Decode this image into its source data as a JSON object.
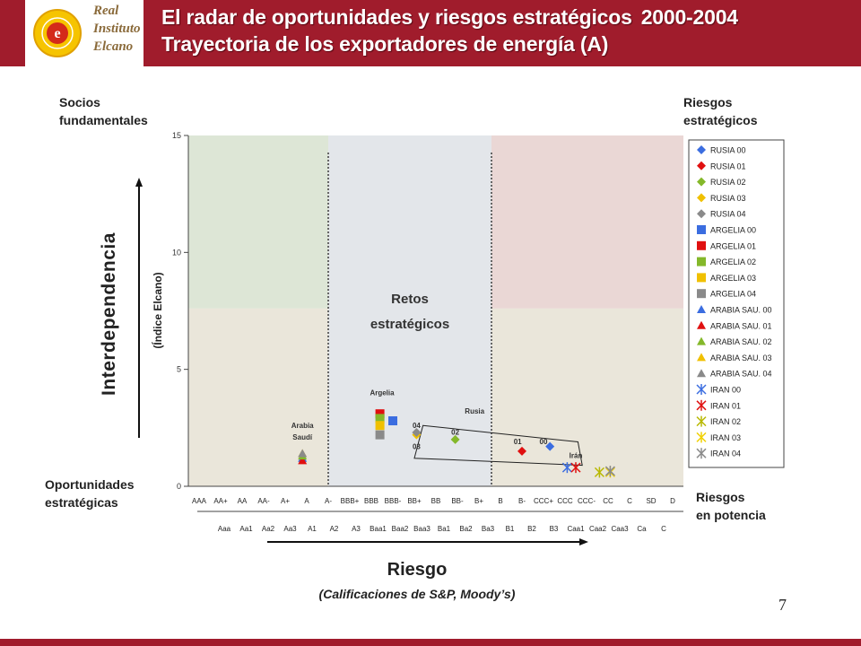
{
  "header": {
    "logo_text": [
      "Real",
      "Instituto",
      "Elcano"
    ],
    "title_line1": "El radar de oportunidades y riesgos estratégicos",
    "title_year": "2000-2004",
    "title_line2": "Trayectoria de los exportadores de energía (A)"
  },
  "corners": {
    "top_left": [
      "Socios",
      "fundamentales"
    ],
    "top_right": [
      "Riesgos",
      "estratégicos"
    ],
    "bottom_left": [
      "Oportunidades",
      "estratégicas"
    ],
    "bottom_right": [
      "Riesgos",
      "en potencia"
    ]
  },
  "page_number": "7",
  "colors": {
    "brand": "#a01c2c",
    "zone_green": "#dde6d6",
    "zone_grey": "#e3e6ea",
    "zone_pink": "#ead7d5",
    "zone_beige": "#eae6da"
  },
  "chart_data": {
    "type": "scatter",
    "ylabel": "Interdependencia",
    "ylabel_sub": "(Índice Elcano)",
    "xlabel": "Riesgo",
    "xlabel_sub": "(Calificaciones de S&P, Moody’s)",
    "ylim": [
      0,
      15
    ],
    "yticks": [
      0,
      5,
      10,
      15
    ],
    "grid": false,
    "legend_position": "right",
    "x_categories_sp": [
      "AAA",
      "AA+",
      "AA",
      "AA-",
      "A+",
      "A",
      "A-",
      "BBB+",
      "BBB",
      "BBB-",
      "BB+",
      "BB",
      "BB-",
      "B+",
      "B",
      "B-",
      "CCC+",
      "CCC",
      "CCC-",
      "CC",
      "C",
      "SD",
      "D"
    ],
    "x_categories_moodys": [
      "Aaa",
      "Aa1",
      "Aa2",
      "Aa3",
      "A1",
      "A2",
      "A3",
      "Baa1",
      "Baa2",
      "Baa3",
      "Ba1",
      "Ba2",
      "Ba3",
      "B1",
      "B2",
      "B3",
      "Caa1",
      "Caa2",
      "Caa3",
      "Ca",
      "C"
    ],
    "zone_text": [
      "Retos",
      "estratégicos"
    ],
    "annotations": [
      {
        "text": "Argelia",
        "x": 8.5,
        "y": 3.9
      },
      {
        "text": "Arabia",
        "x": 4.8,
        "y": 2.5
      },
      {
        "text": "Saudí",
        "x": 4.8,
        "y": 2.0
      },
      {
        "text": "Rusia",
        "x": 12.8,
        "y": 3.1
      },
      {
        "text": "Irán",
        "x": 17.5,
        "y": 1.2
      },
      {
        "text": "04",
        "x": 10.1,
        "y": 2.5
      },
      {
        "text": "03",
        "x": 10.1,
        "y": 1.6
      },
      {
        "text": "02",
        "x": 11.9,
        "y": 2.2
      },
      {
        "text": "01",
        "x": 14.8,
        "y": 1.8
      },
      {
        "text": "00",
        "x": 16.0,
        "y": 1.8
      }
    ],
    "series": [
      {
        "name": "RUSIA 00",
        "marker": "diamond",
        "color": "#3b6de0",
        "points": [
          [
            16.3,
            1.7
          ]
        ]
      },
      {
        "name": "RUSIA 01",
        "marker": "diamond",
        "color": "#e01010",
        "points": [
          [
            15.0,
            1.5
          ]
        ]
      },
      {
        "name": "RUSIA 02",
        "marker": "diamond",
        "color": "#84b82a",
        "points": [
          [
            11.9,
            2.0
          ]
        ]
      },
      {
        "name": "RUSIA 03",
        "marker": "diamond",
        "color": "#f0c000",
        "points": [
          [
            10.1,
            2.2
          ]
        ]
      },
      {
        "name": "RUSIA 04",
        "marker": "diamond",
        "color": "#8a8a8a",
        "points": [
          [
            10.1,
            2.3
          ]
        ]
      },
      {
        "name": "ARGELIA 00",
        "marker": "square",
        "color": "#3b6de0",
        "points": [
          [
            9.0,
            2.8
          ]
        ]
      },
      {
        "name": "ARGELIA 01",
        "marker": "square",
        "color": "#e01010",
        "points": [
          [
            8.4,
            3.1
          ]
        ]
      },
      {
        "name": "ARGELIA 02",
        "marker": "square",
        "color": "#84b82a",
        "points": [
          [
            8.4,
            2.9
          ]
        ]
      },
      {
        "name": "ARGELIA 03",
        "marker": "square",
        "color": "#f0c000",
        "points": [
          [
            8.4,
            2.6
          ]
        ]
      },
      {
        "name": "ARGELIA 04",
        "marker": "square",
        "color": "#8a8a8a",
        "points": [
          [
            8.4,
            2.2
          ]
        ]
      },
      {
        "name": "ARABIA SAU. 00",
        "marker": "triangle",
        "color": "#3b6de0",
        "points": [
          [
            4.8,
            1.2
          ]
        ]
      },
      {
        "name": "ARABIA SAU. 01",
        "marker": "triangle",
        "color": "#e01010",
        "points": [
          [
            4.8,
            1.1
          ]
        ]
      },
      {
        "name": "ARABIA SAU. 02",
        "marker": "triangle",
        "color": "#84b82a",
        "points": [
          [
            4.8,
            1.3
          ]
        ]
      },
      {
        "name": "ARABIA SAU. 03",
        "marker": "triangle",
        "color": "#f0c000",
        "points": [
          [
            4.8,
            1.4
          ]
        ]
      },
      {
        "name": "ARABIA SAU. 04",
        "marker": "triangle",
        "color": "#8a8a8a",
        "points": [
          [
            4.8,
            1.4
          ]
        ]
      },
      {
        "name": "IRAN 00",
        "marker": "star",
        "color": "#3b6de0",
        "points": [
          [
            17.1,
            0.8
          ]
        ]
      },
      {
        "name": "IRAN 01",
        "marker": "star",
        "color": "#e01010",
        "points": [
          [
            17.5,
            0.8
          ]
        ]
      },
      {
        "name": "IRAN 02",
        "marker": "star",
        "color": "#b8b800",
        "points": [
          [
            18.6,
            0.6
          ]
        ]
      },
      {
        "name": "IRAN 03",
        "marker": "star",
        "color": "#f0d000",
        "points": [
          [
            19.1,
            0.6
          ]
        ]
      },
      {
        "name": "IRAN 04",
        "marker": "star",
        "color": "#8a8a8a",
        "points": [
          [
            19.1,
            0.65
          ]
        ]
      }
    ]
  }
}
